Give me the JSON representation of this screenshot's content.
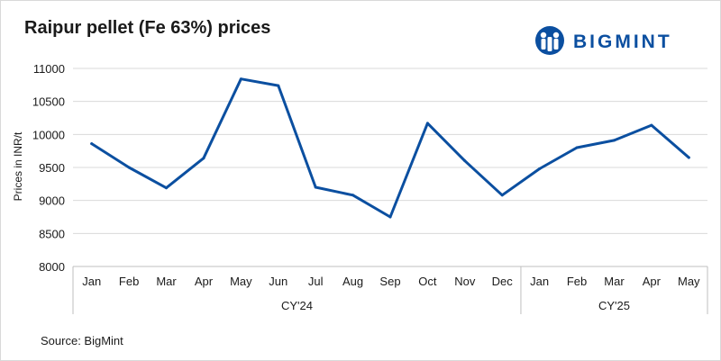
{
  "chart_data": {
    "type": "line",
    "title": "Raipur pellet (Fe 63%) prices",
    "ylabel": "Prices in INR/t",
    "xlabel": "",
    "ylim": [
      8000,
      11000
    ],
    "yticks": [
      "8000",
      "8500",
      "9000",
      "9500",
      "10000",
      "10500",
      "11000"
    ],
    "grid": true,
    "categories": [
      "Jan",
      "Feb",
      "Mar",
      "Apr",
      "May",
      "Jun",
      "Jul",
      "Aug",
      "Sep",
      "Oct",
      "Nov",
      "Dec",
      "Jan",
      "Feb",
      "Mar",
      "Apr",
      "May"
    ],
    "groups": [
      {
        "label": "CY'24",
        "count": 12
      },
      {
        "label": "CY'25",
        "count": 5
      }
    ],
    "series": [
      {
        "name": "",
        "color": "#0b4fa0",
        "values": [
          9860,
          9500,
          9190,
          9640,
          10840,
          10740,
          9200,
          9080,
          8750,
          10170,
          9600,
          9080,
          9480,
          9800,
          9910,
          10140,
          9650
        ]
      }
    ]
  },
  "source": "Source: BigMint",
  "logo": {
    "text": "BIGMINT",
    "color": "#0b4fa0",
    "icon": "bigmint-logo-icon"
  }
}
